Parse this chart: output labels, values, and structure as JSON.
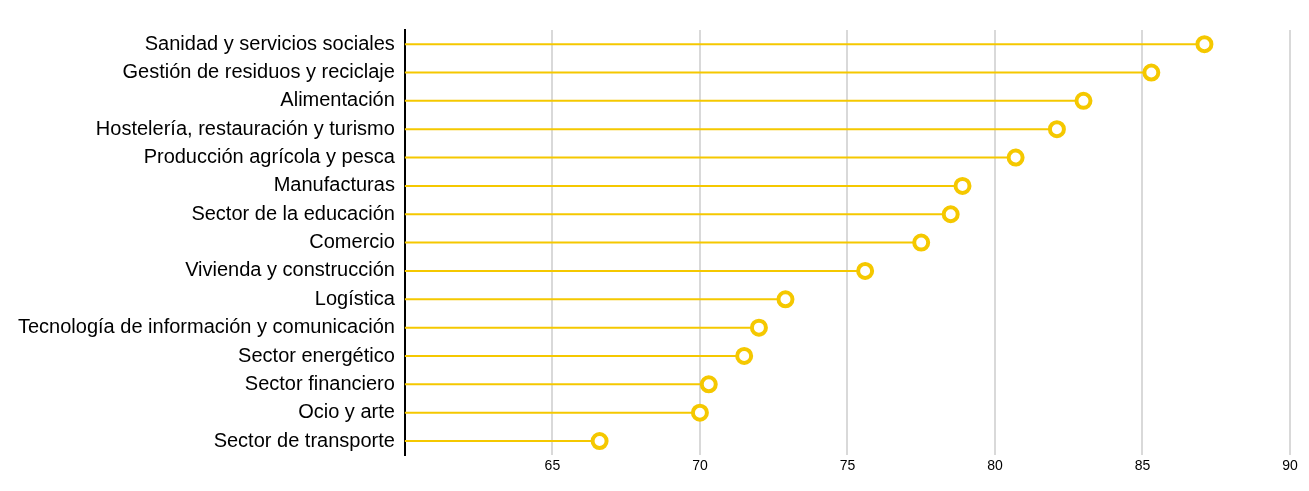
{
  "chart_data": {
    "type": "lollipop",
    "orientation": "horizontal",
    "categories": [
      "Sanidad y servicios sociales",
      "Gestión de residuos y reciclaje",
      "Alimentación",
      "Hostelería, restauración y turismo",
      "Producción agrícola y pesca",
      "Manufacturas",
      "Sector de la educación",
      "Comercio",
      "Vivienda y construcción",
      "Logística",
      "Tecnología de información y comunicación",
      "Sector energético",
      "Sector financiero",
      "Ocio y arte",
      "Sector de transporte"
    ],
    "values": [
      87.1,
      85.3,
      83.0,
      82.1,
      80.7,
      78.9,
      78.5,
      77.5,
      75.6,
      72.9,
      72.0,
      71.5,
      70.3,
      70.0,
      66.6
    ],
    "color": "#f5c800",
    "xlim": [
      60,
      90
    ],
    "xticks": [
      65,
      70,
      75,
      80,
      85,
      90
    ],
    "grid": "x",
    "marker": "circle",
    "legend": false
  }
}
